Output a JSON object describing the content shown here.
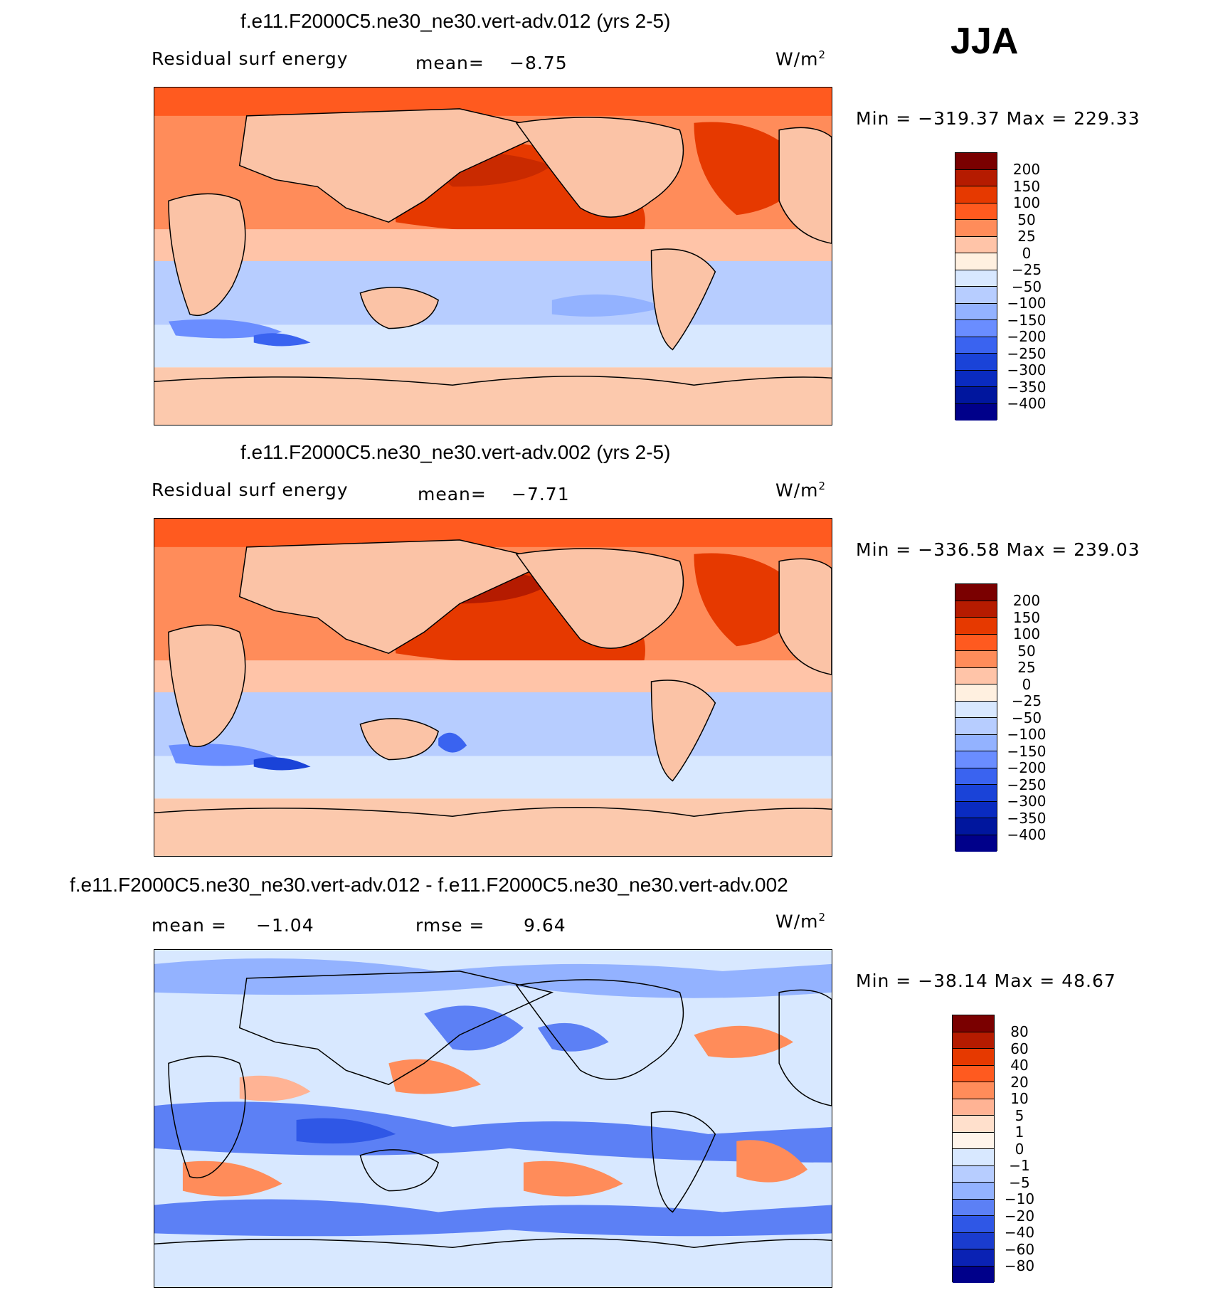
{
  "season": "JJA",
  "colors": {
    "warm": [
      "#7a0000",
      "#b51b00",
      "#e63900",
      "#ff5a1f",
      "#ff8c5a",
      "#ffc4a8",
      "#fff0e0"
    ],
    "cool": [
      "#d8e8ff",
      "#b7cdff",
      "#93b2ff",
      "#6a8dff",
      "#3a63f0",
      "#1a43d8",
      "#0a2bc0",
      "#00169e",
      "#00008a"
    ],
    "diff_warm": [
      "#7a0000",
      "#b51b00",
      "#e63900",
      "#ff5a1f",
      "#ff8c5a",
      "#ffb394",
      "#ffe0cc"
    ],
    "diff_cool": [
      "#d8e8ff",
      "#b7cdff",
      "#93b2ff",
      "#5c80f5",
      "#2f57e6",
      "#1a3ccf",
      "#0a22b4",
      "#00008a"
    ],
    "land": "#fbc3a6",
    "antarctica": "#fcc9ad"
  },
  "panels": [
    {
      "title": "f.e11.F2000C5.ne30_ne30.vert-adv.012 (yrs 2-5)",
      "left_label": "Residual surf energy",
      "mean_label": "mean=",
      "mean_value": "−8.75",
      "units": "W/m",
      "units_sup": "2",
      "minmax": "Min = −319.37 Max = 229.33",
      "levels": [
        "200",
        "150",
        "100",
        "50",
        "25",
        "0",
        "−25",
        "−50",
        "−100",
        "−150",
        "−200",
        "−250",
        "−300",
        "−350",
        "−400"
      ]
    },
    {
      "title": "f.e11.F2000C5.ne30_ne30.vert-adv.002 (yrs 2-5)",
      "left_label": "Residual surf energy",
      "mean_label": "mean=",
      "mean_value": "−7.71",
      "units": "W/m",
      "units_sup": "2",
      "minmax": "Min = −336.58 Max = 239.03",
      "levels": [
        "200",
        "150",
        "100",
        "50",
        "25",
        "0",
        "−25",
        "−50",
        "−100",
        "−150",
        "−200",
        "−250",
        "−300",
        "−350",
        "−400"
      ]
    },
    {
      "title": "f.e11.F2000C5.ne30_ne30.vert-adv.012 - f.e11.F2000C5.ne30_ne30.vert-adv.002",
      "left_label": "mean =",
      "left_value": "−1.04",
      "rmse_label": "rmse =",
      "rmse_value": "9.64",
      "units": "W/m",
      "units_sup": "2",
      "minmax": "Min = −38.14 Max =  48.67",
      "levels": [
        "80",
        "60",
        "40",
        "20",
        "10",
        "5",
        "1",
        "0",
        "−1",
        "−5",
        "−10",
        "−20",
        "−40",
        "−60",
        "−80"
      ]
    }
  ]
}
